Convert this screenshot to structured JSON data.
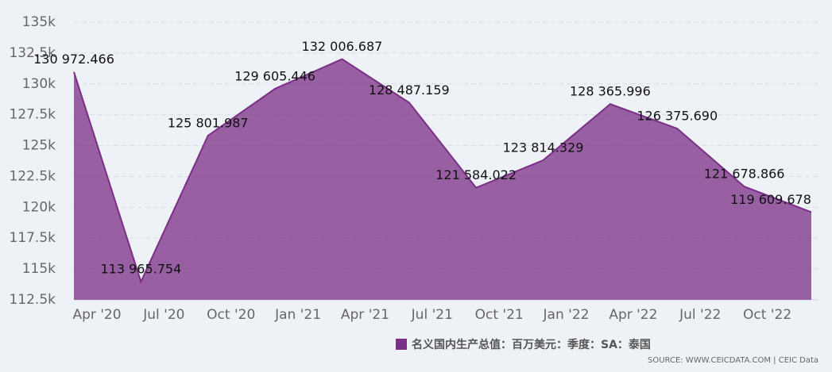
{
  "chart_data": {
    "type": "area",
    "categories": [
      "Apr '20",
      "Jul '20",
      "Oct '20",
      "Jan '21",
      "Apr '21",
      "Jul '21",
      "Oct '21",
      "Jan '22",
      "Apr '22",
      "Jul '22",
      "Oct '22",
      null
    ],
    "series": [
      {
        "name": "名义国内生产总值：百万美元：季度：SA：泰国",
        "color": "#7b2f86",
        "values": [
          130972.466,
          113965.754,
          125801.987,
          129605.446,
          132006.687,
          128487.159,
          121584.022,
          123814.329,
          128365.996,
          126375.69,
          121678.866,
          119609.678
        ],
        "value_labels": [
          "130 972.466",
          "113 965.754",
          "125 801.987",
          "129 605.446",
          "132 006.687",
          "128 487.159",
          "121 584.022",
          "123 814.329",
          "128 365.996",
          "126 375.690",
          "121 678.866",
          "119 609.678"
        ]
      }
    ],
    "ylim": [
      112500,
      135000
    ],
    "yticks": [
      {
        "value": 112500,
        "label": "112.5k"
      },
      {
        "value": 115000,
        "label": "115k"
      },
      {
        "value": 117500,
        "label": "117.5k"
      },
      {
        "value": 120000,
        "label": "120k"
      },
      {
        "value": 122500,
        "label": "122.5k"
      },
      {
        "value": 125000,
        "label": "125k"
      },
      {
        "value": 127500,
        "label": "127.5k"
      },
      {
        "value": 130000,
        "label": "130k"
      },
      {
        "value": 132500,
        "label": "132.5k"
      },
      {
        "value": 135000,
        "label": "135k"
      }
    ],
    "grid": true,
    "source": "SOURCE: WWW.CEICDATA.COM | CEIC Data"
  }
}
